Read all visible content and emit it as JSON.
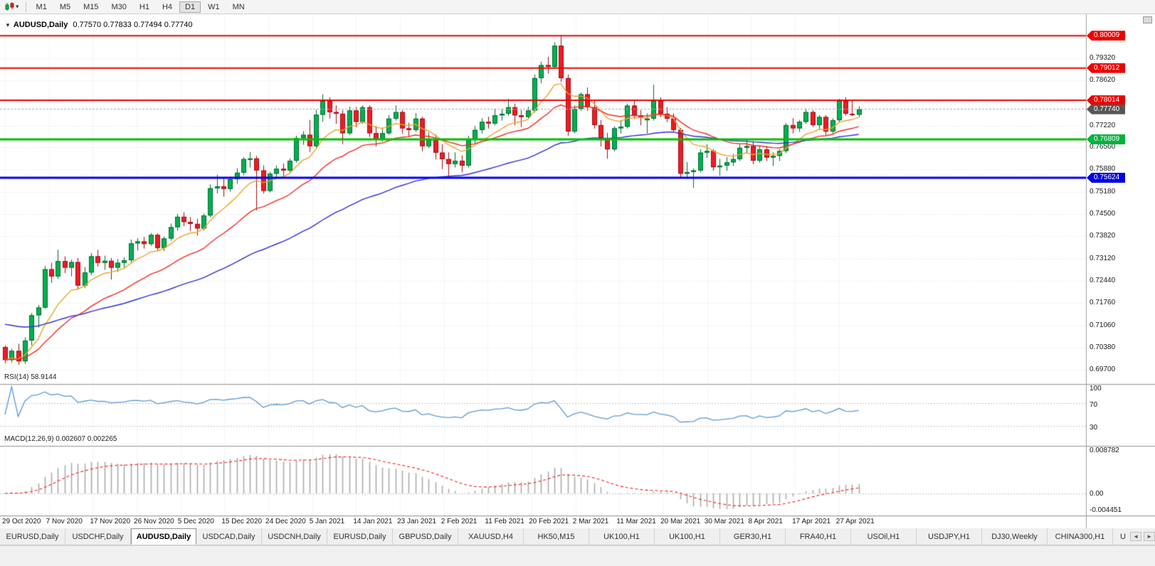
{
  "toolbar": {
    "timeframes": [
      "M1",
      "M5",
      "M15",
      "M30",
      "H1",
      "H4",
      "D1",
      "W1",
      "MN"
    ],
    "active": "D1",
    "chart_type_caret": "▾"
  },
  "chart": {
    "collapse_icon": "▼",
    "title": "AUDUSD,Daily",
    "ohlc": "0.77570 0.77833 0.77494 0.77740",
    "current_price": "0.77740",
    "current_price_line_color": "#a8a8a8"
  },
  "price_axis": {
    "ticks": [
      "0.79320",
      "0.78620",
      "0.77920",
      "0.77220",
      "0.76560",
      "0.75880",
      "0.75180",
      "0.74500",
      "0.73820",
      "0.73120",
      "0.72440",
      "0.71760",
      "0.71060",
      "0.70380",
      "0.69700"
    ],
    "tags": [
      {
        "value": "0.80009",
        "color": "#f00000",
        "kind": "resistance"
      },
      {
        "value": "0.79012",
        "color": "#f00000",
        "kind": "resistance"
      },
      {
        "value": "0.78014",
        "color": "#f00000",
        "kind": "resistance"
      },
      {
        "value": "0.77740",
        "color": "#565656",
        "kind": "current-price"
      },
      {
        "value": "0.76809",
        "color": "#00b23d",
        "kind": "pivot"
      },
      {
        "value": "0.75624",
        "color": "#0000e0",
        "kind": "support"
      }
    ]
  },
  "indicators": {
    "rsi": {
      "label": "RSI(14) 58.9144",
      "value": 58.9144,
      "period": 14,
      "axis": [
        "100",
        "70",
        "30"
      ],
      "levels": [
        70,
        30
      ],
      "color": "#5b9bd5"
    },
    "macd": {
      "label": "MACD(12,26,9) 0.002607 0.002265",
      "main_value": 0.002607,
      "signal_value": 0.002265,
      "params": [
        12,
        26,
        9
      ],
      "axis": [
        "0.008782",
        "0.00",
        "-0.004451"
      ],
      "hist_color": "#ababab",
      "signal_color": "#f02020"
    }
  },
  "tabs": {
    "items": [
      "EURUSD,Daily",
      "USDCHF,Daily",
      "AUDUSD,Daily",
      "USDCAD,Daily",
      "USDCNH,Daily",
      "EURUSD,Daily",
      "GBPUSD,Daily",
      "XAUUSD,H4",
      "HK50,M15",
      "UK100,H1",
      "UK100,H1",
      "GER30,H1",
      "FRA40,H1",
      "USOil,H1",
      "USDJPY,H1",
      "DJ30,Weekly",
      "CHINA300,H1",
      "U"
    ],
    "active_index": 2,
    "scroll_arrows": [
      "◄",
      "►"
    ]
  },
  "chart_data": {
    "type": "candlestick",
    "symbol": "AUDUSD",
    "period": "Daily",
    "ylim": [
      0.6926,
      0.8054
    ],
    "dates": [
      "29 Oct 2020",
      "7 Nov 2020",
      "17 Nov 2020",
      "26 Nov 2020",
      "5 Dec 2020",
      "15 Dec 2020",
      "24 Dec 2020",
      "5 Jan 2021",
      "14 Jan 2021",
      "23 Jan 2021",
      "2 Feb 2021",
      "11 Feb 2021",
      "20 Feb 2021",
      "2 Mar 2021",
      "11 Mar 2021",
      "20 Mar 2021",
      "30 Mar 2021",
      "8 Apr 2021",
      "17 Apr 2021",
      "27 Apr 2021"
    ],
    "hlines": [
      {
        "price": 0.80009,
        "color": "#f00000",
        "width": 2
      },
      {
        "price": 0.79012,
        "color": "#f00000",
        "width": 2
      },
      {
        "price": 0.78014,
        "color": "#f00000",
        "width": 2
      },
      {
        "price": 0.76809,
        "color": "#00c000",
        "width": 3
      },
      {
        "price": 0.75624,
        "color": "#0000f0",
        "width": 3
      }
    ],
    "up_color": "#00b050",
    "down_color": "#ee1c24",
    "up_border": "#006b2d",
    "down_border": "#9e0e13",
    "moving_averages": [
      {
        "type": "ema",
        "period": 9,
        "color": "#efa42c"
      },
      {
        "type": "ema",
        "period": 21,
        "color": "#f22c26"
      },
      {
        "type": "ema",
        "period": 55,
        "color": "#2f2fd8",
        "seed": 0.711
      }
    ],
    "candles": [
      [
        0.704,
        0.7045,
        0.699,
        0.7
      ],
      [
        0.7,
        0.7035,
        0.6992,
        0.7028
      ],
      [
        0.7028,
        0.705,
        0.6985,
        0.6996
      ],
      [
        0.6996,
        0.707,
        0.6988,
        0.706
      ],
      [
        0.706,
        0.7145,
        0.7045,
        0.7138
      ],
      [
        0.7138,
        0.717,
        0.71,
        0.7162
      ],
      [
        0.7162,
        0.729,
        0.7158,
        0.728
      ],
      [
        0.728,
        0.73,
        0.7238,
        0.7258
      ],
      [
        0.7258,
        0.734,
        0.725,
        0.7305
      ],
      [
        0.7305,
        0.732,
        0.7268,
        0.7285
      ],
      [
        0.7285,
        0.731,
        0.7258,
        0.7302
      ],
      [
        0.7302,
        0.7315,
        0.7218,
        0.723
      ],
      [
        0.723,
        0.7287,
        0.7222,
        0.727
      ],
      [
        0.727,
        0.733,
        0.7262,
        0.732
      ],
      [
        0.732,
        0.734,
        0.7288,
        0.73
      ],
      [
        0.73,
        0.7322,
        0.7278,
        0.7306
      ],
      [
        0.7306,
        0.7315,
        0.7248,
        0.7285
      ],
      [
        0.7285,
        0.7312,
        0.7272,
        0.73
      ],
      [
        0.73,
        0.7317,
        0.7284,
        0.7308
      ],
      [
        0.7308,
        0.7372,
        0.73,
        0.736
      ],
      [
        0.736,
        0.7376,
        0.7338,
        0.7366
      ],
      [
        0.7366,
        0.738,
        0.7344,
        0.7358
      ],
      [
        0.7358,
        0.7392,
        0.7352,
        0.7386
      ],
      [
        0.7386,
        0.7391,
        0.7338,
        0.7346
      ],
      [
        0.7346,
        0.7381,
        0.7336,
        0.7375
      ],
      [
        0.7375,
        0.7421,
        0.7368,
        0.741
      ],
      [
        0.741,
        0.7451,
        0.7399,
        0.7442
      ],
      [
        0.7442,
        0.7456,
        0.7413,
        0.7426
      ],
      [
        0.7426,
        0.7441,
        0.7398,
        0.742
      ],
      [
        0.742,
        0.7436,
        0.7384,
        0.7406
      ],
      [
        0.7406,
        0.7452,
        0.74,
        0.7446
      ],
      [
        0.7446,
        0.7542,
        0.744,
        0.753
      ],
      [
        0.753,
        0.7572,
        0.7514,
        0.7536
      ],
      [
        0.7536,
        0.756,
        0.7504,
        0.7528
      ],
      [
        0.7528,
        0.7566,
        0.752,
        0.7558
      ],
      [
        0.7558,
        0.7592,
        0.7544,
        0.7578
      ],
      [
        0.7578,
        0.7626,
        0.757,
        0.762
      ],
      [
        0.762,
        0.7642,
        0.7594,
        0.7622
      ],
      [
        0.7622,
        0.763,
        0.7462,
        0.7585
      ],
      [
        0.7585,
        0.7601,
        0.7514,
        0.7522
      ],
      [
        0.7522,
        0.7581,
        0.7517,
        0.7575
      ],
      [
        0.7575,
        0.76,
        0.7558,
        0.759
      ],
      [
        0.759,
        0.7606,
        0.7568,
        0.7585
      ],
      [
        0.7585,
        0.7622,
        0.7579,
        0.7615
      ],
      [
        0.7615,
        0.7692,
        0.7609,
        0.7685
      ],
      [
        0.7685,
        0.7706,
        0.7664,
        0.7695
      ],
      [
        0.7695,
        0.7741,
        0.7642,
        0.766
      ],
      [
        0.766,
        0.7772,
        0.7655,
        0.7757
      ],
      [
        0.7757,
        0.782,
        0.7735,
        0.78
      ],
      [
        0.78,
        0.7811,
        0.7745,
        0.7765
      ],
      [
        0.7765,
        0.7786,
        0.7729,
        0.776
      ],
      [
        0.776,
        0.7771,
        0.7666,
        0.77
      ],
      [
        0.77,
        0.7782,
        0.7694,
        0.777
      ],
      [
        0.777,
        0.7781,
        0.7718,
        0.7735
      ],
      [
        0.7735,
        0.7786,
        0.7729,
        0.778
      ],
      [
        0.778,
        0.7786,
        0.7688,
        0.77
      ],
      [
        0.77,
        0.7722,
        0.7659,
        0.768
      ],
      [
        0.768,
        0.7717,
        0.7674,
        0.77
      ],
      [
        0.77,
        0.7756,
        0.7694,
        0.7745
      ],
      [
        0.7745,
        0.7786,
        0.7739,
        0.7765
      ],
      [
        0.7765,
        0.7771,
        0.7698,
        0.7715
      ],
      [
        0.7715,
        0.7732,
        0.7689,
        0.771
      ],
      [
        0.771,
        0.7762,
        0.7704,
        0.7745
      ],
      [
        0.7745,
        0.7751,
        0.7644,
        0.766
      ],
      [
        0.766,
        0.7702,
        0.7654,
        0.768
      ],
      [
        0.768,
        0.7696,
        0.7619,
        0.764
      ],
      [
        0.764,
        0.7666,
        0.7589,
        0.762
      ],
      [
        0.762,
        0.7641,
        0.7564,
        0.7605
      ],
      [
        0.7605,
        0.7641,
        0.7594,
        0.7615
      ],
      [
        0.7615,
        0.7632,
        0.7579,
        0.76
      ],
      [
        0.76,
        0.7692,
        0.7594,
        0.768
      ],
      [
        0.768,
        0.7722,
        0.7669,
        0.771
      ],
      [
        0.771,
        0.7746,
        0.7699,
        0.7735
      ],
      [
        0.7735,
        0.7751,
        0.7714,
        0.773
      ],
      [
        0.773,
        0.7776,
        0.7724,
        0.7755
      ],
      [
        0.7755,
        0.7776,
        0.7739,
        0.776
      ],
      [
        0.776,
        0.7806,
        0.7754,
        0.778
      ],
      [
        0.778,
        0.7791,
        0.7724,
        0.7755
      ],
      [
        0.7755,
        0.7771,
        0.7719,
        0.775
      ],
      [
        0.775,
        0.7781,
        0.7744,
        0.777
      ],
      [
        0.777,
        0.7881,
        0.7764,
        0.787
      ],
      [
        0.787,
        0.7921,
        0.7854,
        0.791
      ],
      [
        0.791,
        0.7936,
        0.7884,
        0.7905
      ],
      [
        0.7905,
        0.7981,
        0.7899,
        0.797
      ],
      [
        0.797,
        0.8001,
        0.7858,
        0.787
      ],
      [
        0.787,
        0.7881,
        0.7692,
        0.7705
      ],
      [
        0.7705,
        0.7786,
        0.7699,
        0.7775
      ],
      [
        0.7775,
        0.7826,
        0.7769,
        0.782
      ],
      [
        0.782,
        0.7841,
        0.7769,
        0.778
      ],
      [
        0.778,
        0.7801,
        0.7714,
        0.7725
      ],
      [
        0.7725,
        0.7741,
        0.7659,
        0.7685
      ],
      [
        0.7685,
        0.7701,
        0.7621,
        0.765
      ],
      [
        0.765,
        0.7721,
        0.7644,
        0.7715
      ],
      [
        0.7715,
        0.7741,
        0.7699,
        0.772
      ],
      [
        0.772,
        0.7791,
        0.7714,
        0.7785
      ],
      [
        0.7785,
        0.7801,
        0.7744,
        0.7755
      ],
      [
        0.7755,
        0.7771,
        0.7724,
        0.775
      ],
      [
        0.774,
        0.7761,
        0.7699,
        0.7745
      ],
      [
        0.7745,
        0.785,
        0.7739,
        0.78
      ],
      [
        0.78,
        0.7811,
        0.7749,
        0.776
      ],
      [
        0.776,
        0.7781,
        0.7734,
        0.7745
      ],
      [
        0.7745,
        0.7761,
        0.7704,
        0.771
      ],
      [
        0.771,
        0.7716,
        0.7564,
        0.7575
      ],
      [
        0.7575,
        0.7611,
        0.7559,
        0.758
      ],
      [
        0.758,
        0.7591,
        0.7531,
        0.7585
      ],
      [
        0.7585,
        0.7651,
        0.7579,
        0.764
      ],
      [
        0.764,
        0.7666,
        0.7624,
        0.7645
      ],
      [
        0.7645,
        0.7651,
        0.7584,
        0.7595
      ],
      [
        0.7595,
        0.7621,
        0.7569,
        0.76
      ],
      [
        0.76,
        0.7626,
        0.7584,
        0.761
      ],
      [
        0.761,
        0.7636,
        0.7599,
        0.762
      ],
      [
        0.762,
        0.7666,
        0.7614,
        0.7655
      ],
      [
        0.7655,
        0.7681,
        0.7639,
        0.766
      ],
      [
        0.766,
        0.7676,
        0.7604,
        0.7615
      ],
      [
        0.7615,
        0.7661,
        0.7609,
        0.765
      ],
      [
        0.765,
        0.7661,
        0.7614,
        0.7625
      ],
      [
        0.7625,
        0.7641,
        0.7599,
        0.763
      ],
      [
        0.763,
        0.7651,
        0.7614,
        0.7645
      ],
      [
        0.7645,
        0.7731,
        0.7639,
        0.7725
      ],
      [
        0.7725,
        0.7746,
        0.7699,
        0.7715
      ],
      [
        0.7715,
        0.7741,
        0.7704,
        0.7735
      ],
      [
        0.7735,
        0.7776,
        0.7729,
        0.7765
      ],
      [
        0.7765,
        0.7771,
        0.7719,
        0.7725
      ],
      [
        0.7725,
        0.7756,
        0.7714,
        0.775
      ],
      [
        0.775,
        0.7756,
        0.7694,
        0.7705
      ],
      [
        0.7705,
        0.7746,
        0.7699,
        0.774
      ],
      [
        0.774,
        0.7806,
        0.7734,
        0.78
      ],
      [
        0.78,
        0.7811,
        0.7754,
        0.776
      ],
      [
        0.776,
        0.7801,
        0.7752,
        0.7757
      ],
      [
        0.7757,
        0.77833,
        0.77494,
        0.7774
      ]
    ]
  }
}
